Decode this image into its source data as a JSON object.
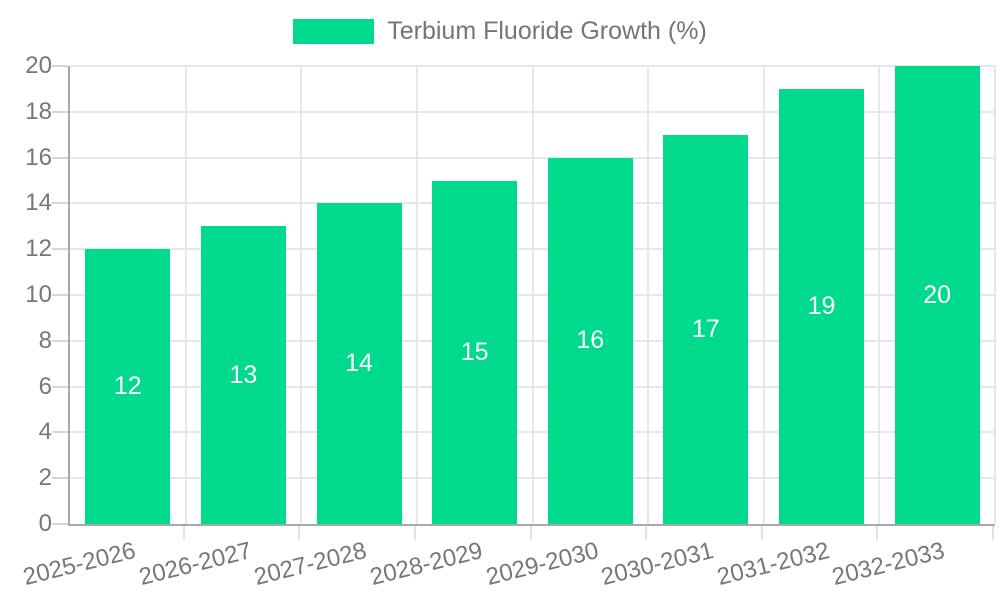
{
  "legend": {
    "label": "Terbium Fluoride Growth (%)"
  },
  "colors": {
    "bar": "#00DA8C",
    "bar_label": "#ffffff",
    "axis_text": "#777777",
    "legend_text": "#757575",
    "gridline": "#e7e7e7",
    "axis_line": "#a8a8a8",
    "background": "#ffffff"
  },
  "chart_data": {
    "type": "bar",
    "title": "",
    "xlabel": "",
    "ylabel": "",
    "legend_position": "top",
    "legend_entries": [
      "Terbium Fluoride Growth (%)"
    ],
    "categories": [
      "2025-2026",
      "2026-2027",
      "2027-2028",
      "2028-2029",
      "2029-2030",
      "2030-2031",
      "2031-2032",
      "2032-2033"
    ],
    "series": [
      {
        "name": "Terbium Fluoride Growth (%)",
        "values": [
          12,
          13,
          14,
          15,
          16,
          17,
          19,
          20
        ]
      }
    ],
    "values": [
      12,
      13,
      14,
      15,
      16,
      17,
      19,
      20
    ],
    "value_labels": "inside-center",
    "ylim": [
      0,
      20
    ],
    "ytick_step": 2,
    "yticks": [
      0,
      2,
      4,
      6,
      8,
      10,
      12,
      14,
      16,
      18,
      20
    ],
    "grid": true,
    "x_tick_rotation_deg": -14
  }
}
